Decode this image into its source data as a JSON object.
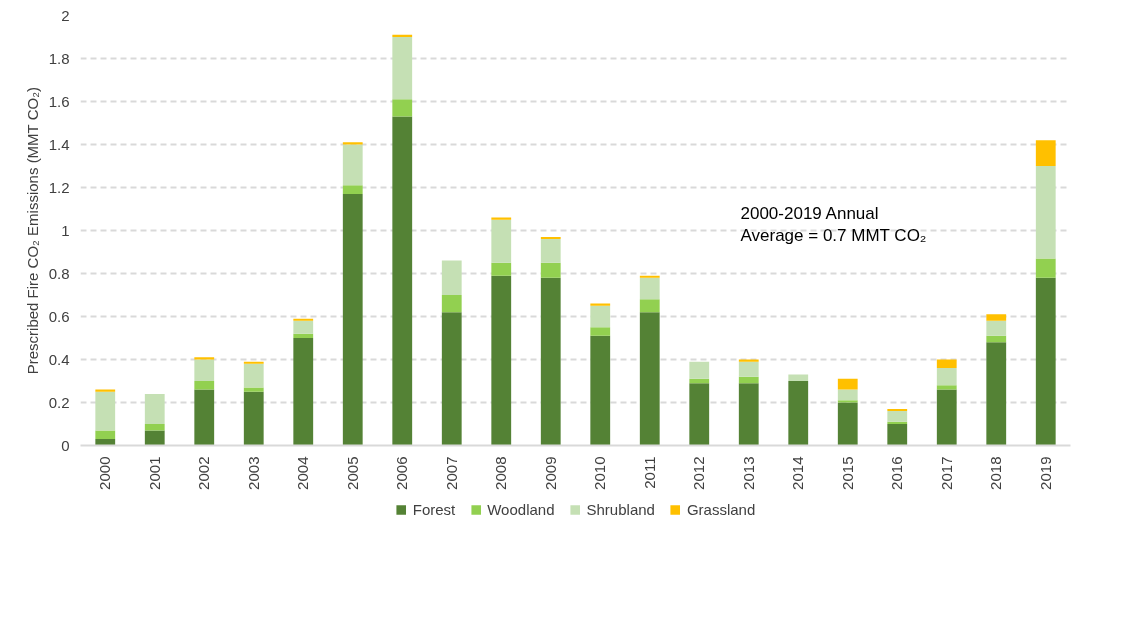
{
  "chart_data": {
    "type": "bar",
    "stacked": true,
    "ylabel": "Prescribed Fire CO₂ Emissions (MMT CO₂)",
    "categories": [
      "2000",
      "2001",
      "2002",
      "2003",
      "2004",
      "2005",
      "2006",
      "2007",
      "2008",
      "2009",
      "2010",
      "2011",
      "2012",
      "2013",
      "2014",
      "2015",
      "2016",
      "2017",
      "2018",
      "2019"
    ],
    "series": [
      {
        "name": "Forest",
        "color": "#548235",
        "values": [
          0.03,
          0.07,
          0.26,
          0.25,
          0.5,
          1.17,
          1.53,
          0.62,
          0.79,
          0.78,
          0.51,
          0.62,
          0.29,
          0.29,
          0.3,
          0.2,
          0.1,
          0.26,
          0.48,
          0.78
        ]
      },
      {
        "name": "Woodland",
        "color": "#92d050",
        "values": [
          0.04,
          0.03,
          0.04,
          0.02,
          0.02,
          0.04,
          0.08,
          0.08,
          0.06,
          0.07,
          0.04,
          0.06,
          0.02,
          0.03,
          0.0,
          0.01,
          0.01,
          0.02,
          0.03,
          0.09
        ]
      },
      {
        "name": "Shrubland",
        "color": "#c5e0b4",
        "values": [
          0.18,
          0.14,
          0.1,
          0.11,
          0.06,
          0.19,
          0.29,
          0.16,
          0.2,
          0.11,
          0.1,
          0.1,
          0.08,
          0.07,
          0.03,
          0.05,
          0.05,
          0.08,
          0.07,
          0.43
        ]
      },
      {
        "name": "Grassland",
        "color": "#ffc000",
        "values": [
          0.01,
          0.0,
          0.01,
          0.01,
          0.01,
          0.01,
          0.01,
          0.0,
          0.01,
          0.01,
          0.01,
          0.01,
          0.0,
          0.01,
          0.0,
          0.05,
          0.01,
          0.04,
          0.03,
          0.12
        ]
      }
    ],
    "ylim": [
      0,
      2
    ],
    "yticks": [
      0,
      0.2,
      0.4,
      0.6,
      0.8,
      1,
      1.2,
      1.4,
      1.6,
      1.8,
      2
    ],
    "grid": "y",
    "legend": "bottom",
    "annotations": [
      "2000-2019 Annual\nAverage = 0.7 MMT CO₂"
    ]
  }
}
